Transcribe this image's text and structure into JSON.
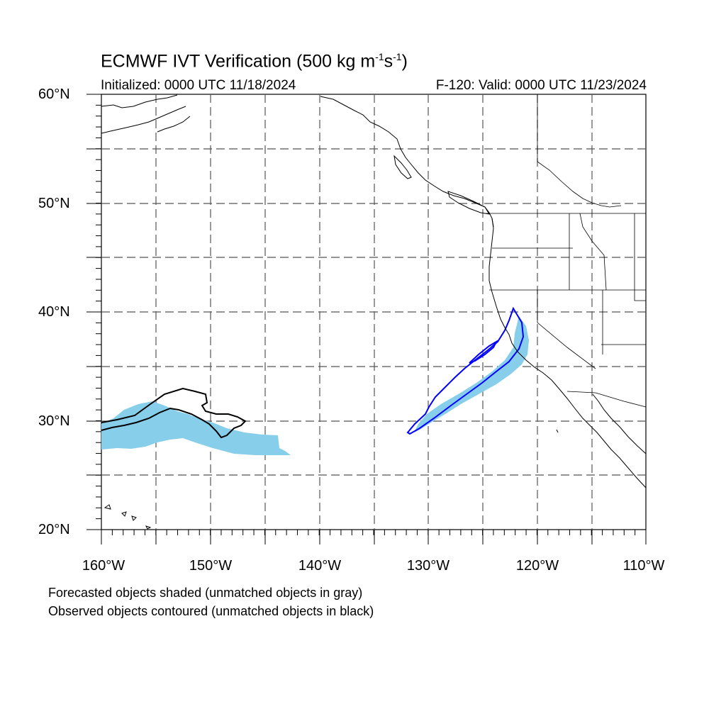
{
  "title": {
    "main": "ECMWF IVT Verification (500 kg m",
    "sup1": "-1",
    "mid": "s",
    "sup2": "-1",
    "end": ")"
  },
  "initialized": "Initialized: 0000 UTC 11/18/2024",
  "valid": "F-120: Valid: 0000 UTC 11/23/2024",
  "lat_labels": [
    "60°N",
    "50°N",
    "40°N",
    "30°N",
    "20°N"
  ],
  "lon_labels": [
    "160°W",
    "150°W",
    "140°W",
    "130°W",
    "120°W",
    "110°W"
  ],
  "notes": [
    "Forecasted objects shaded (unmatched objects in gray)",
    "Observed objects contoured (unmatched objects in black)"
  ],
  "colors": {
    "forecast_fill": "#87ceeb",
    "matched_contour": "#0000ff",
    "unmatched_contour": "#000000",
    "grid": "#555555",
    "coast": "#000000"
  },
  "map_extent": {
    "lon_min": -160,
    "lon_max": -110,
    "lat_min": 20,
    "lat_max": 60
  }
}
